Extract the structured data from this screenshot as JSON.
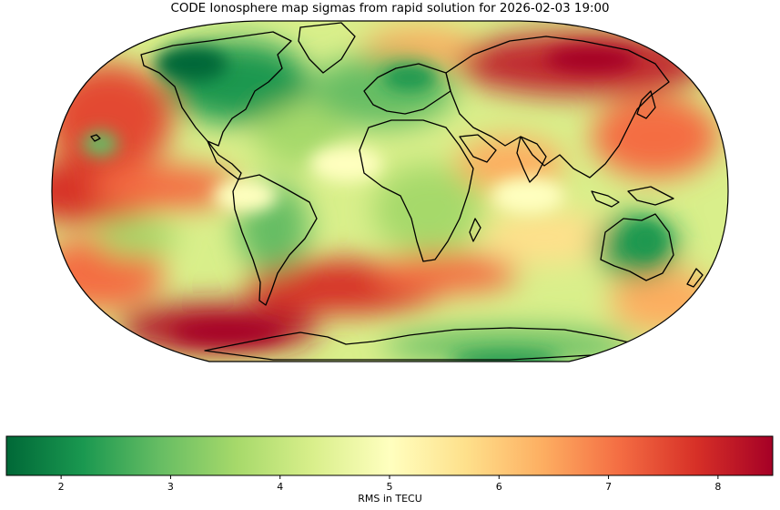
{
  "title": "CODE Ionosphere map sigmas from rapid solution for 2026-02-03 19:00",
  "colorbar": {
    "label": "RMS in TECU",
    "min": 1.5,
    "max": 8.5,
    "ticks": [
      "2",
      "3",
      "4",
      "5",
      "6",
      "7",
      "8"
    ],
    "colormap": "RdYlGn_r",
    "stops": [
      "#006837",
      "#1a9850",
      "#66bd63",
      "#a6d96a",
      "#d9ef8b",
      "#ffffbf",
      "#fee08b",
      "#fdae61",
      "#f46d43",
      "#d73027",
      "#a50026"
    ]
  },
  "map": {
    "projection": "Robinson",
    "coastlines": "black"
  }
}
